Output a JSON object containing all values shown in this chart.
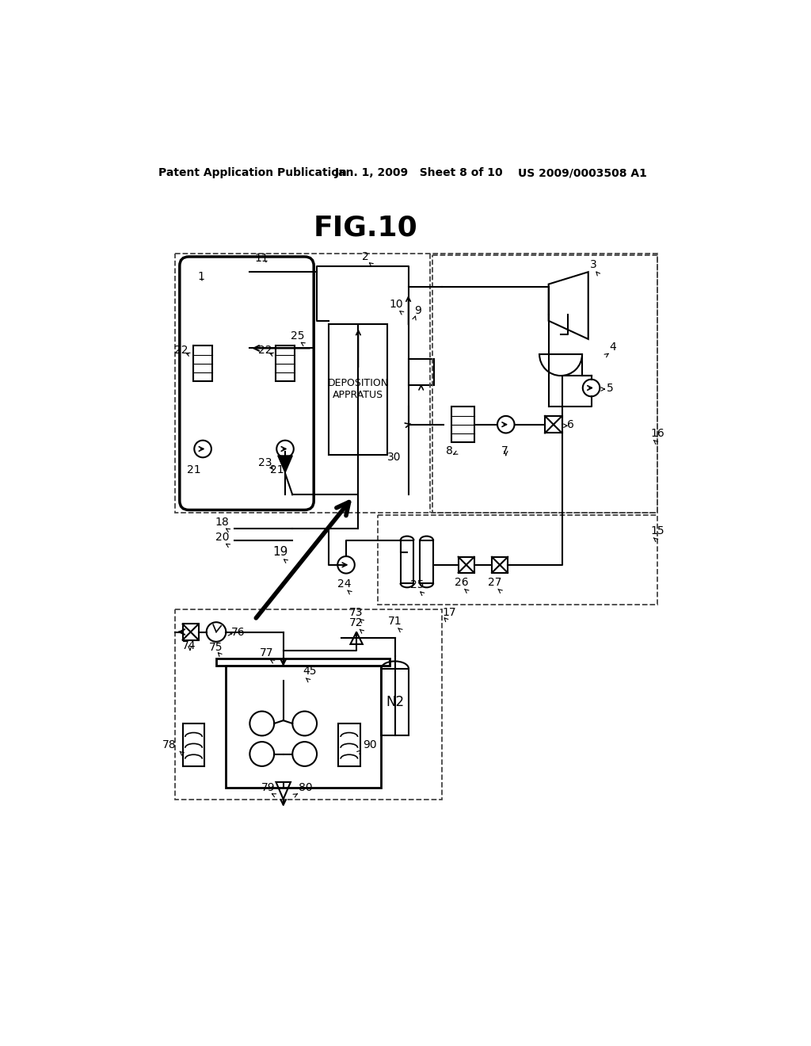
{
  "title": "FIG.10",
  "header_left": "Patent Application Publication",
  "header_center": "Jan. 1, 2009   Sheet 8 of 10",
  "header_right": "US 2009/0003508 A1",
  "bg_color": "#ffffff",
  "line_color": "#000000",
  "dash_box_color": "#555555"
}
